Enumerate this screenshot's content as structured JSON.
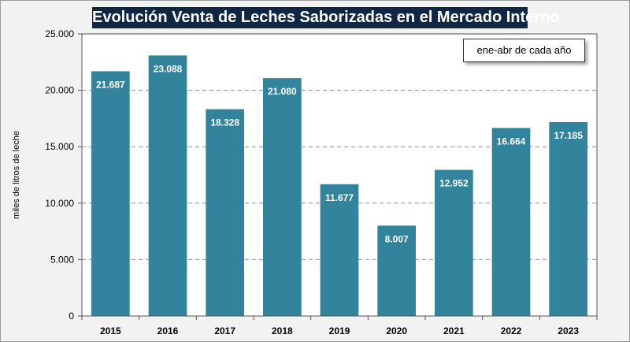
{
  "chart_data": {
    "type": "bar",
    "title": "Evolución Venta de Leches Saborizadas en el Mercado Interno",
    "annotation": "ene-abr de cada año",
    "xlabel": "",
    "ylabel": "miles de litros de leche",
    "categories": [
      "2015",
      "2016",
      "2017",
      "2018",
      "2019",
      "2020",
      "2021",
      "2022",
      "2023"
    ],
    "values": [
      21687,
      23088,
      18328,
      21080,
      11677,
      8007,
      12952,
      16664,
      17185
    ],
    "value_labels": [
      "21.687",
      "23.088",
      "18.328",
      "21.080",
      "11.677",
      "8.007",
      "12.952",
      "16.664",
      "17.185"
    ],
    "ylim": [
      0,
      25000
    ],
    "yticks": [
      0,
      5000,
      10000,
      15000,
      20000,
      25000
    ],
    "ytick_labels": [
      "0",
      "5.000",
      "10.000",
      "15.000",
      "20.000",
      "25.000"
    ],
    "grid": "horizontal dashed",
    "legend": "none",
    "bar_color": "#31849b",
    "title_bg_color": "#0f2742"
  }
}
